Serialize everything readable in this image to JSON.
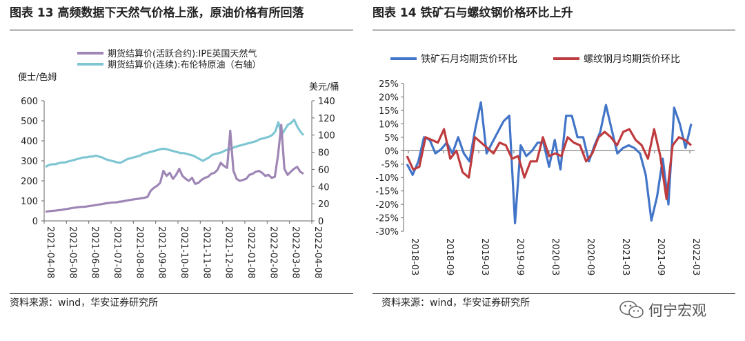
{
  "header": {
    "left_title": "图表 13  高频数据下天然气价格上涨，原油价格有所回落",
    "right_title": "图表 14 铁矿石与螺纹钢价格环比上升"
  },
  "footer": {
    "left_source": "资料来源：wind，华安证券研究所",
    "right_source": "资料来源：wind，华安证券研究所",
    "watermark": "何宁宏观"
  },
  "colors": {
    "purple": "#9E86B5",
    "teal": "#7FC6D3",
    "blue": "#4275C8",
    "red": "#BE3B3E"
  },
  "chart_data": [
    {
      "type": "line",
      "title": "高频数据下天然气价格上涨，原油价格有所回落",
      "left_unit": "便士/色姆",
      "right_unit": "美元/桶",
      "y_left": {
        "min": 0,
        "max": 600,
        "ticks": [
          "0",
          "100",
          "200",
          "300",
          "400",
          "500",
          "600"
        ]
      },
      "y_right": {
        "min": 0,
        "max": 140,
        "ticks": [
          "0",
          "20",
          "40",
          "60",
          "80",
          "100",
          "120",
          "140"
        ]
      },
      "x_ticks": [
        "2021-04-08",
        "2021-05-08",
        "2021-06-08",
        "2021-07-08",
        "2021-08-08",
        "2021-09-08",
        "2021-10-08",
        "2021-11-08",
        "2021-12-08",
        "2022-01-08",
        "2022-02-08",
        "2022-03-08",
        "2022-04-08"
      ],
      "series": [
        {
          "name": "期货结算价(活跃合约):IPE英国天然气",
          "axis": "left",
          "values": [
            46,
            48,
            50,
            51,
            53,
            55,
            58,
            60,
            63,
            66,
            68,
            70,
            70,
            72,
            75,
            77,
            80,
            82,
            85,
            88,
            90,
            92,
            92,
            95,
            97,
            100,
            103,
            106,
            108,
            110,
            113,
            115,
            120,
            150,
            165,
            175,
            190,
            250,
            225,
            240,
            210,
            230,
            260,
            225,
            210,
            200,
            215,
            185,
            190,
            205,
            215,
            220,
            235,
            240,
            255,
            290,
            275,
            265,
            450,
            250,
            210,
            200,
            205,
            210,
            230,
            235,
            245,
            250,
            240,
            225,
            230,
            215,
            220,
            330,
            480,
            260,
            230,
            245,
            260,
            270,
            245,
            235
          ]
        },
        {
          "name": "期货结算价(连续):布伦特原油（右轴）",
          "axis": "right",
          "values": [
            63,
            65,
            66,
            66,
            67,
            68,
            68,
            69,
            70,
            71,
            72,
            73,
            74,
            74,
            75,
            75,
            76,
            75,
            74,
            72,
            71,
            70,
            69,
            68,
            68,
            70,
            72,
            73,
            74,
            75,
            76,
            78,
            79,
            80,
            81,
            82,
            83,
            84,
            84,
            83,
            82,
            81,
            80,
            79,
            79,
            78,
            77,
            76,
            74,
            72,
            70,
            72,
            74,
            77,
            78,
            79,
            80,
            82,
            83,
            84,
            86,
            87,
            88,
            89,
            90,
            91,
            92,
            93,
            95,
            96,
            97,
            98,
            100,
            104,
            115,
            100,
            106,
            112,
            114,
            118,
            110,
            104,
            100
          ]
        }
      ]
    },
    {
      "type": "line",
      "title": "铁矿石与螺纹钢价格环比上升",
      "y": {
        "min": -30,
        "max": 25,
        "ticks": [
          "25%",
          "20%",
          "15%",
          "10%",
          "5%",
          "0%",
          "-5%",
          "-10%",
          "-15%",
          "-20%",
          "-25%",
          "-30%"
        ]
      },
      "x_ticks": [
        "2018-03",
        "2018-09",
        "2019-03",
        "2019-09",
        "2020-03",
        "2020-09",
        "2021-03",
        "2021-09",
        "2022-03"
      ],
      "series": [
        {
          "name": "铁矿石月均期货价环比",
          "values": [
            -5,
            -9,
            -4,
            5,
            4,
            -1,
            0.5,
            3,
            -1,
            5,
            -1,
            -4,
            8,
            18,
            -1,
            3,
            7,
            11,
            13,
            -27,
            2,
            -2,
            0,
            3,
            3,
            -6,
            4,
            -7,
            13,
            13,
            5,
            5,
            -4,
            2,
            7,
            17,
            8,
            -1,
            1,
            2,
            1,
            -1,
            -9,
            -26,
            -17,
            -3,
            -20,
            16,
            10,
            1,
            10
          ]
        },
        {
          "name": "螺纹钢月均期货价环比",
          "values": [
            -2,
            -7,
            -6,
            5,
            4,
            3,
            8,
            -3,
            0,
            -8,
            -10,
            5,
            3,
            1,
            -1,
            3,
            2,
            -3,
            -2,
            -10,
            -4,
            -4,
            5,
            -2,
            -1,
            -2,
            5,
            3,
            2,
            -4,
            -1,
            5,
            7,
            5,
            2,
            7,
            8,
            4,
            2,
            -3,
            8,
            -2,
            -18,
            2,
            5,
            4,
            2
          ]
        }
      ]
    }
  ]
}
